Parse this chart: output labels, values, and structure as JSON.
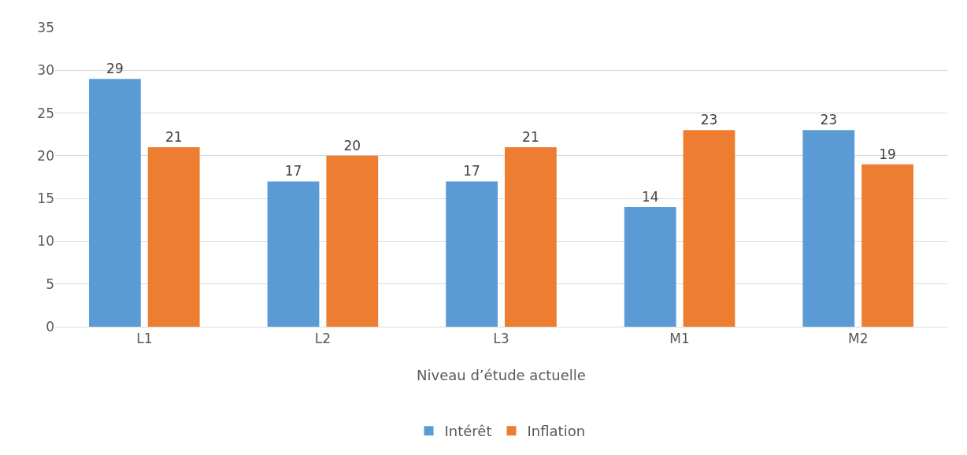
{
  "chart_data": {
    "type": "bar",
    "xlabel": "Niveau d’étude actuelle",
    "categories": [
      "L1",
      "L2",
      "L3",
      "M1",
      "M2"
    ],
    "series": [
      {
        "name": "Intérêt",
        "color": "#5b9bd5",
        "values": [
          29,
          17,
          17,
          14,
          23
        ]
      },
      {
        "name": "Inflation",
        "color": "#ed7d31",
        "values": [
          21,
          20,
          21,
          23,
          19
        ]
      }
    ],
    "ylim": [
      0,
      35
    ],
    "yticks": [
      0,
      5,
      10,
      15,
      20,
      25,
      30,
      35
    ],
    "grid": "y",
    "legend": "bottom",
    "data_labels": true
  }
}
